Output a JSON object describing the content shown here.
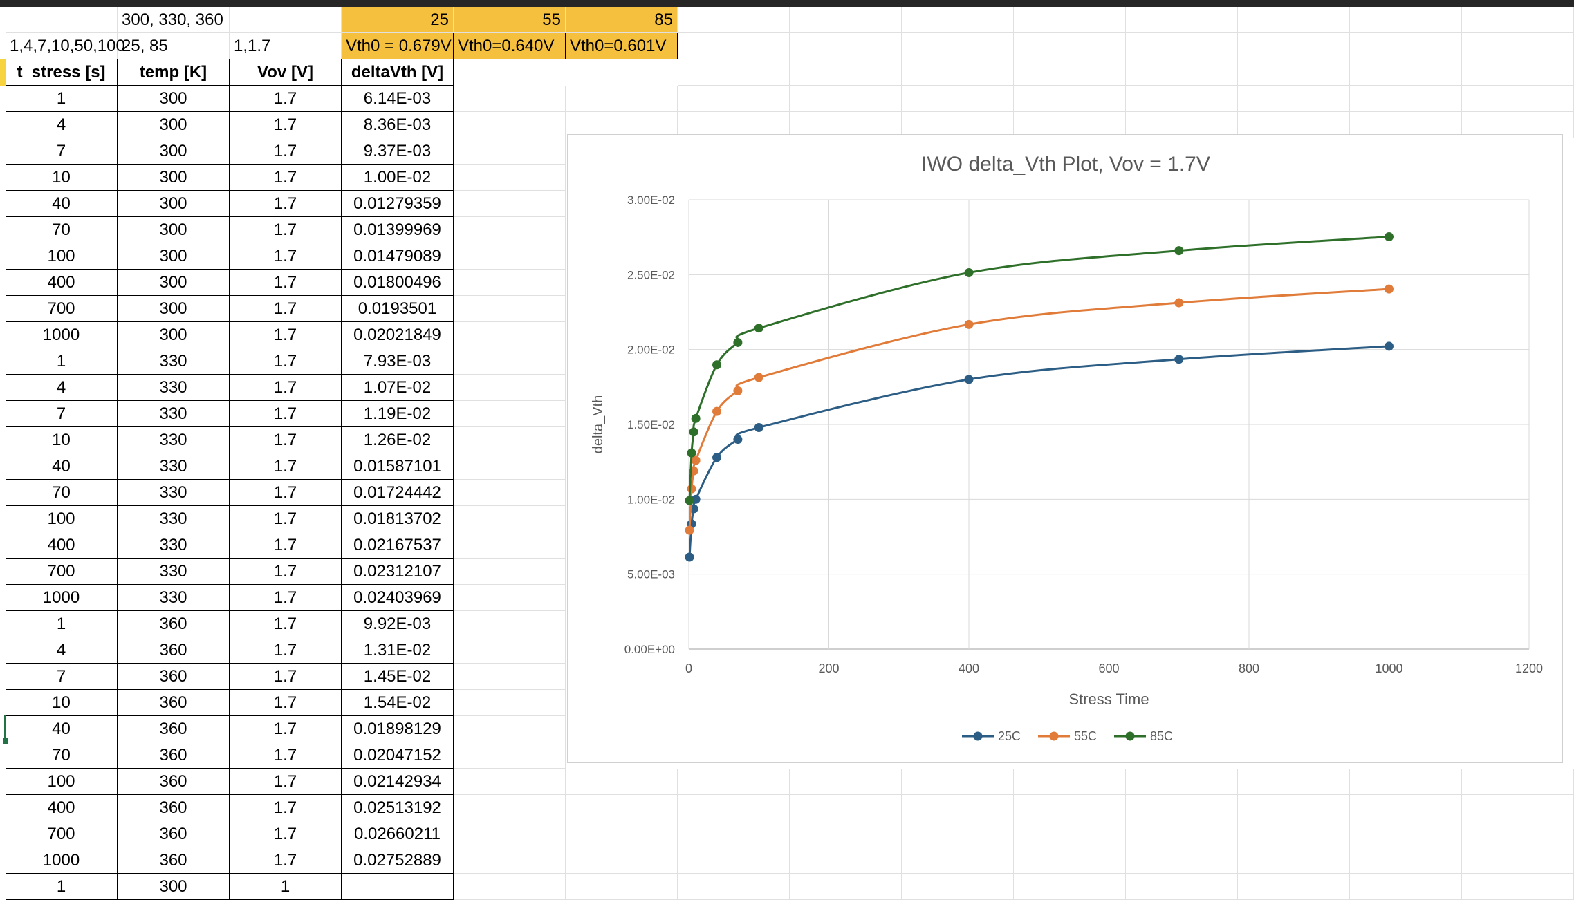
{
  "sheet": {
    "row1": {
      "b": "300, 330, 360",
      "e": "25",
      "f": "55",
      "g": "85"
    },
    "row2": {
      "a": "1,4,7,10,50,100",
      "b": "25, 85",
      "c": "1,1.7",
      "e": "Vth0 = 0.679V",
      "f": "Vth0=0.640V",
      "g": "Vth0=0.601V"
    },
    "headers": [
      "t_stress [s]",
      "temp [K]",
      "Vov [V]",
      "deltaVth [V]"
    ],
    "rows": [
      [
        "1",
        "300",
        "1.7",
        "6.14E-03"
      ],
      [
        "4",
        "300",
        "1.7",
        "8.36E-03"
      ],
      [
        "7",
        "300",
        "1.7",
        "9.37E-03"
      ],
      [
        "10",
        "300",
        "1.7",
        "1.00E-02"
      ],
      [
        "40",
        "300",
        "1.7",
        "0.01279359"
      ],
      [
        "70",
        "300",
        "1.7",
        "0.01399969"
      ],
      [
        "100",
        "300",
        "1.7",
        "0.01479089"
      ],
      [
        "400",
        "300",
        "1.7",
        "0.01800496"
      ],
      [
        "700",
        "300",
        "1.7",
        "0.0193501"
      ],
      [
        "1000",
        "300",
        "1.7",
        "0.02021849"
      ],
      [
        "1",
        "330",
        "1.7",
        "7.93E-03"
      ],
      [
        "4",
        "330",
        "1.7",
        "1.07E-02"
      ],
      [
        "7",
        "330",
        "1.7",
        "1.19E-02"
      ],
      [
        "10",
        "330",
        "1.7",
        "1.26E-02"
      ],
      [
        "40",
        "330",
        "1.7",
        "0.01587101"
      ],
      [
        "70",
        "330",
        "1.7",
        "0.01724442"
      ],
      [
        "100",
        "330",
        "1.7",
        "0.01813702"
      ],
      [
        "400",
        "330",
        "1.7",
        "0.02167537"
      ],
      [
        "700",
        "330",
        "1.7",
        "0.02312107"
      ],
      [
        "1000",
        "330",
        "1.7",
        "0.02403969"
      ],
      [
        "1",
        "360",
        "1.7",
        "9.92E-03"
      ],
      [
        "4",
        "360",
        "1.7",
        "1.31E-02"
      ],
      [
        "7",
        "360",
        "1.7",
        "1.45E-02"
      ],
      [
        "10",
        "360",
        "1.7",
        "1.54E-02"
      ],
      [
        "40",
        "360",
        "1.7",
        "0.01898129"
      ],
      [
        "70",
        "360",
        "1.7",
        "0.02047152"
      ],
      [
        "100",
        "360",
        "1.7",
        "0.02142934"
      ],
      [
        "400",
        "360",
        "1.7",
        "0.02513192"
      ],
      [
        "700",
        "360",
        "1.7",
        "0.02660211"
      ],
      [
        "1000",
        "360",
        "1.7",
        "0.02752889"
      ],
      [
        "1",
        "300",
        "1",
        ""
      ]
    ]
  },
  "colors": {
    "accent": "#f6c03f",
    "series_25": "#2c5d84",
    "series_55": "#e07b39",
    "series_85": "#2e6f2a"
  },
  "chart_data": {
    "type": "scatter",
    "title": "IWO delta_Vth Plot, Vov = 1.7V",
    "xlabel": "Stress Time",
    "ylabel": "delta_Vth",
    "xlim": [
      0,
      1200
    ],
    "ylim": [
      0,
      0.03
    ],
    "xticks": [
      0,
      200,
      400,
      600,
      800,
      1000,
      1200
    ],
    "xtick_labels": [
      "0",
      "200",
      "400",
      "600",
      "800",
      "1000",
      "1200"
    ],
    "yticks": [
      0,
      0.005,
      0.01,
      0.015,
      0.02,
      0.025,
      0.03
    ],
    "ytick_labels": [
      "0.00E+00",
      "5.00E-03",
      "1.00E-02",
      "1.50E-02",
      "2.00E-02",
      "2.50E-02",
      "3.00E-02"
    ],
    "grid": true,
    "smooth_lines": true,
    "legend_position": "bottom",
    "series": [
      {
        "name": "25C",
        "color": "#2c5d84",
        "x": [
          1,
          4,
          7,
          10,
          40,
          70,
          100,
          400,
          700,
          1000
        ],
        "y": [
          0.00614,
          0.00836,
          0.00937,
          0.01,
          0.01279359,
          0.01399969,
          0.01479089,
          0.01800496,
          0.0193501,
          0.02021849
        ]
      },
      {
        "name": "55C",
        "color": "#e07b39",
        "x": [
          1,
          4,
          7,
          10,
          40,
          70,
          100,
          400,
          700,
          1000
        ],
        "y": [
          0.00793,
          0.0107,
          0.0119,
          0.0126,
          0.01587101,
          0.01724442,
          0.01813702,
          0.02167537,
          0.02312107,
          0.02403969
        ]
      },
      {
        "name": "85C",
        "color": "#2e6f2a",
        "x": [
          1,
          4,
          7,
          10,
          40,
          70,
          100,
          400,
          700,
          1000
        ],
        "y": [
          0.00992,
          0.0131,
          0.0145,
          0.0154,
          0.01898129,
          0.02047152,
          0.02142934,
          0.02513192,
          0.02660211,
          0.02752889
        ]
      }
    ]
  }
}
